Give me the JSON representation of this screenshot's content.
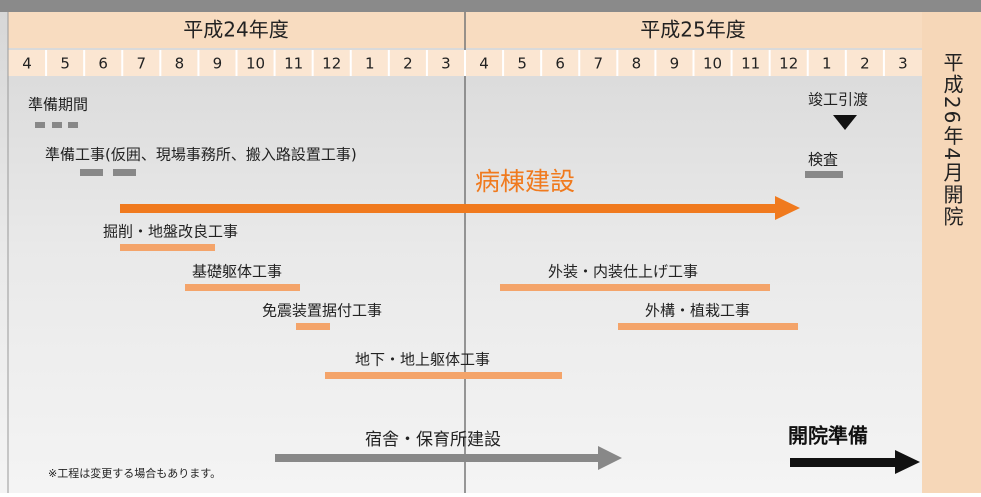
{
  "header": {
    "years": [
      "平成24年度",
      "平成25年度"
    ],
    "months": [
      "4",
      "5",
      "6",
      "7",
      "8",
      "9",
      "10",
      "11",
      "12",
      "1",
      "2",
      "3",
      "4",
      "5",
      "6",
      "7",
      "8",
      "9",
      "10",
      "11",
      "12",
      "1",
      "2",
      "3"
    ]
  },
  "side_label": "平成26年4月開院",
  "tasks": {
    "preparation_period": "準備期間",
    "preparation_work": "準備工事(仮囲、現場事務所、搬入路設置工事)",
    "main": "病棟建設",
    "excavation": "掘削・地盤改良工事",
    "foundation": "基礎躯体工事",
    "seismic": "免震装置据付工事",
    "structure": "地下・地上躯体工事",
    "finishing": "外装・内装仕上げ工事",
    "exterior": "外構・植栽工事",
    "handover": "竣工引渡",
    "inspection": "検査",
    "dormitory": "宿舎・保育所建設",
    "opening_prep": "開院準備"
  },
  "note": "※工程は変更する場合もあります。"
}
